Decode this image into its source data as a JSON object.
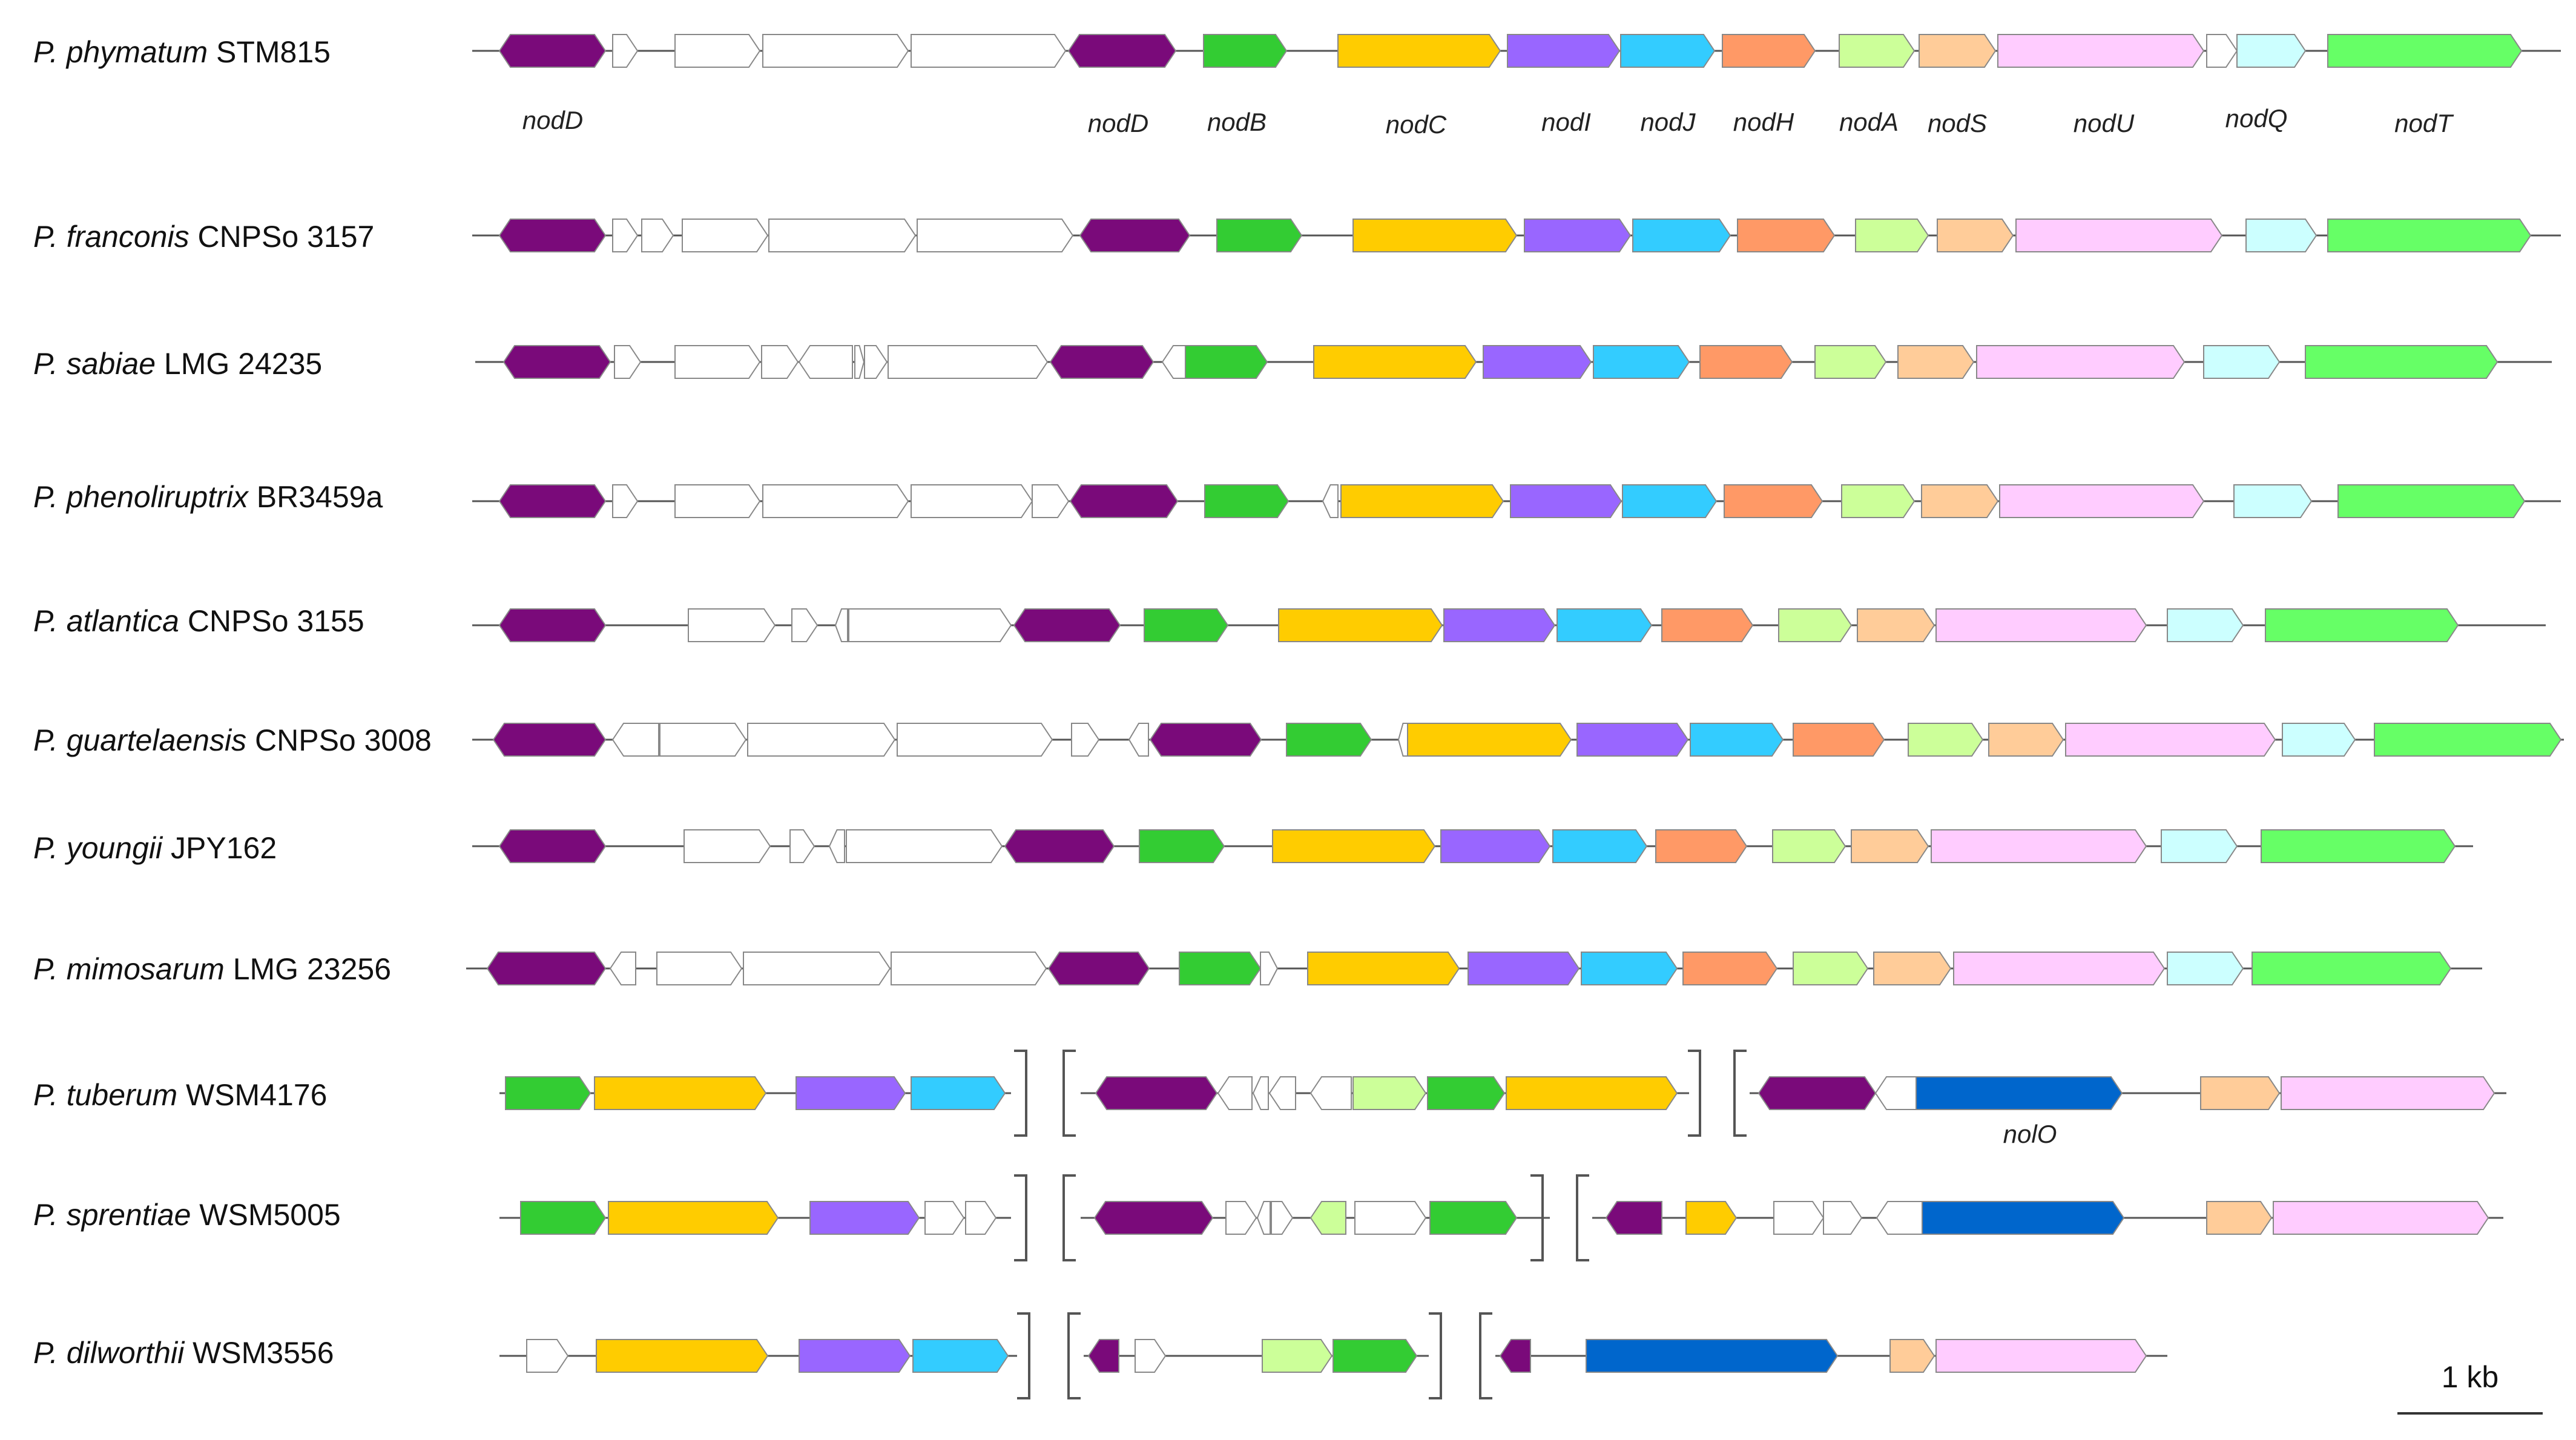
{
  "colors": {
    "nodD": "#7a0a7a",
    "nodB": "#33cc33",
    "nodC": "#ffcc00",
    "nodI": "#9966ff",
    "nodJ": "#33ccff",
    "nodH": "#ff9966",
    "nodA": "#ccff99",
    "nodS": "#ffcc99",
    "nodU": "#ffccff",
    "nodQ": "#ccffff",
    "nodT": "#66ff66",
    "nolO": "#0066cc",
    "other": "#ffffff",
    "line": "#555555",
    "stroke": "#888888"
  },
  "species": [
    {
      "genus": "P. phymatum",
      "strain": " STM815"
    },
    {
      "genus": "P. franconis",
      "strain": " CNPSo 3157"
    },
    {
      "genus": "P. sabiae",
      "strain": " LMG 24235"
    },
    {
      "genus": "P. phenoliruptrix",
      "strain": " BR3459a"
    },
    {
      "genus": "P. atlantica",
      "strain": " CNPSo 3155"
    },
    {
      "genus": "P. guartelaensis",
      "strain": " CNPSo 3008"
    },
    {
      "genus": "P. youngii",
      "strain": " JPY162"
    },
    {
      "genus": "P. mimosarum",
      "strain": " LMG 23256"
    },
    {
      "genus": "P. tuberum",
      "strain": " WSM4176"
    },
    {
      "genus": "P. sprentiae",
      "strain": " WSM5005"
    },
    {
      "genus": "P. dilworthii",
      "strain": " WSM3556"
    }
  ],
  "gene_labels": [
    "nodD",
    "nodD",
    "nodB",
    "nodC",
    "nodI",
    "nodJ",
    "nodH",
    "nodA",
    "nodS",
    "nodU",
    "nodQ",
    "nodT",
    "nolO"
  ],
  "scale_bar": {
    "label": "1 kb"
  }
}
